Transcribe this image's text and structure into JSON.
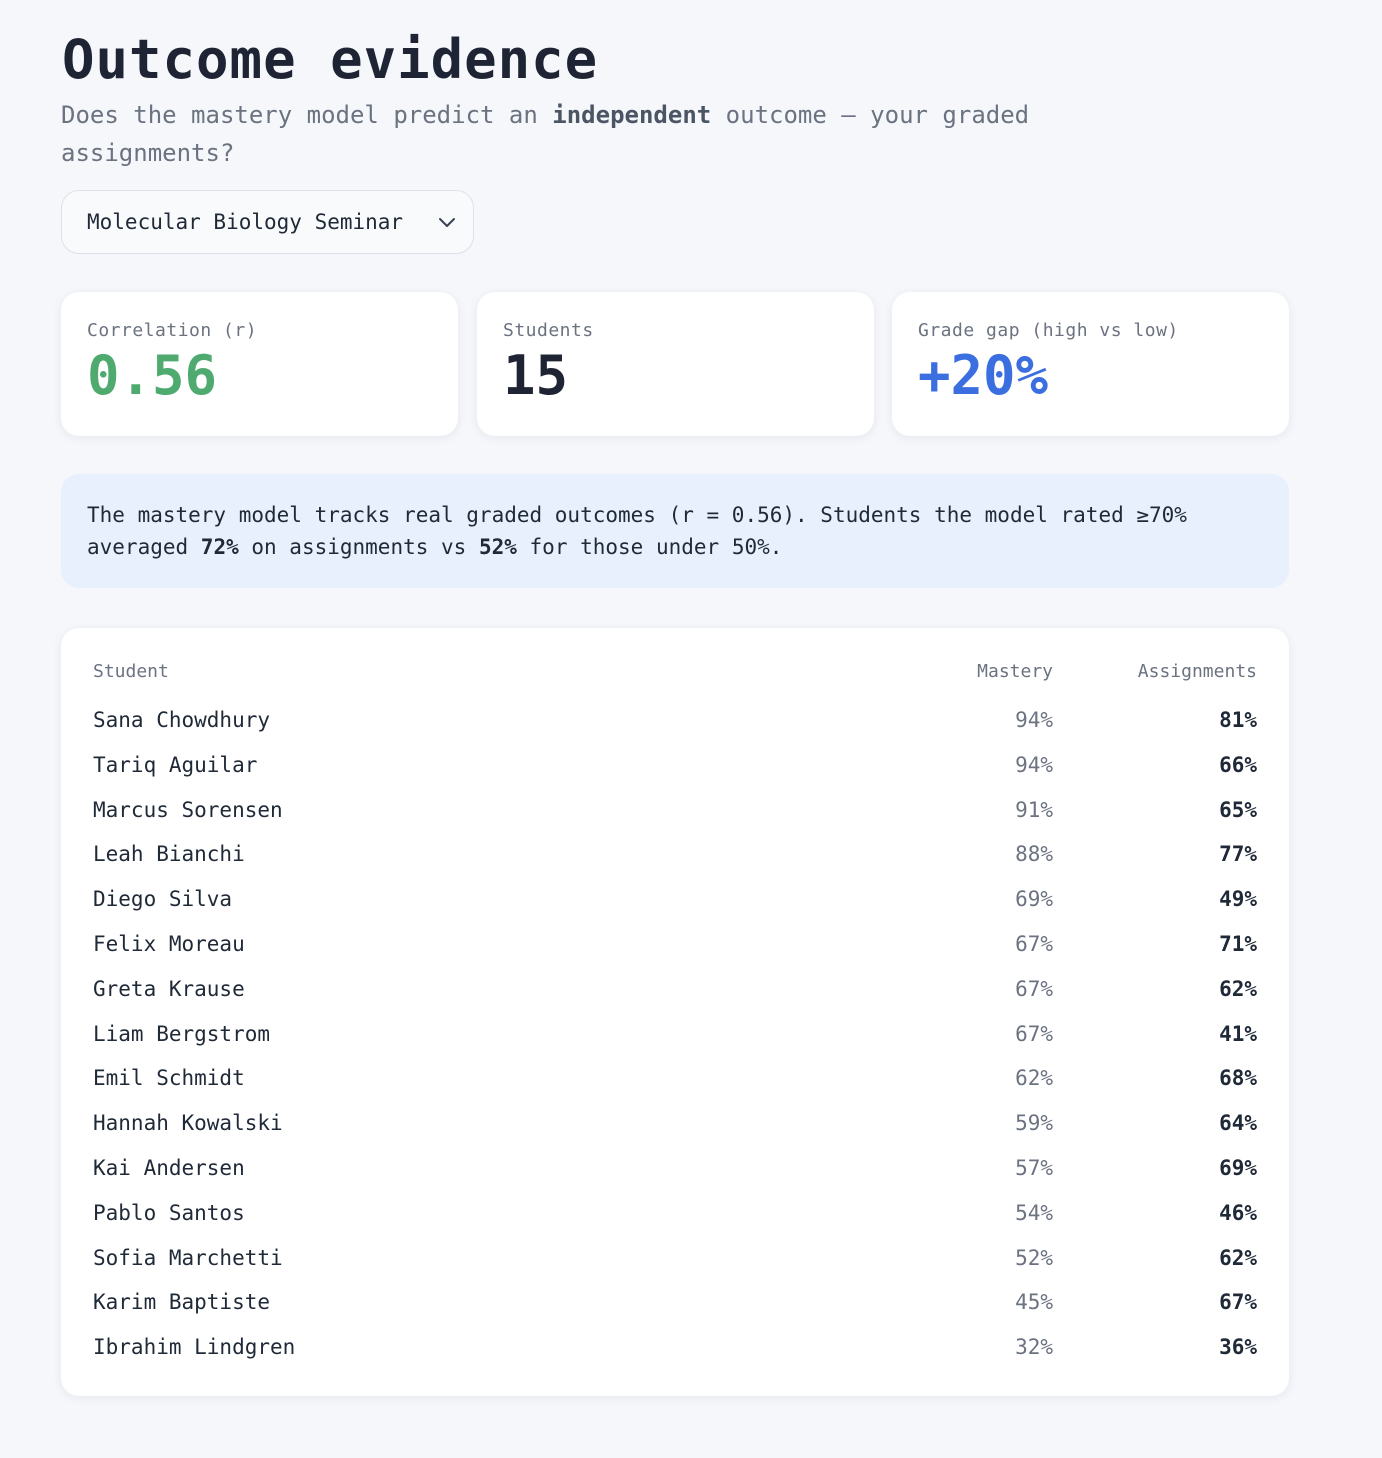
{
  "header": {
    "title": "Outcome evidence",
    "subtitle_pre": "Does the mastery model predict an ",
    "subtitle_bold": "independent",
    "subtitle_post": " outcome — your graded assignments?"
  },
  "course_select": {
    "selected": "Molecular Biology Seminar",
    "icon": "chevron-down-icon"
  },
  "stats": {
    "correlation": {
      "label": "Correlation (r)",
      "value": "0.56",
      "color": "#4eaa6f"
    },
    "students": {
      "label": "Students",
      "value": "15",
      "color": "#1e2433"
    },
    "grade_gap": {
      "label": "Grade gap (high vs low)",
      "value": "+20%",
      "color": "#3b6fe0"
    }
  },
  "summary": {
    "part1": "The mastery model tracks real graded outcomes (r = 0.56). Students the model rated ≥70% averaged ",
    "high_avg": "72%",
    "part2": " on assignments vs ",
    "low_avg": "52%",
    "part3": " for those under 50%."
  },
  "table": {
    "columns": {
      "student": "Student",
      "mastery": "Mastery",
      "assignments": "Assignments"
    },
    "rows": [
      {
        "student": "Sana Chowdhury",
        "mastery": "94%",
        "assignments": "81%"
      },
      {
        "student": "Tariq Aguilar",
        "mastery": "94%",
        "assignments": "66%"
      },
      {
        "student": "Marcus Sorensen",
        "mastery": "91%",
        "assignments": "65%"
      },
      {
        "student": "Leah Bianchi",
        "mastery": "88%",
        "assignments": "77%"
      },
      {
        "student": "Diego Silva",
        "mastery": "69%",
        "assignments": "49%"
      },
      {
        "student": "Felix Moreau",
        "mastery": "67%",
        "assignments": "71%"
      },
      {
        "student": "Greta Krause",
        "mastery": "67%",
        "assignments": "62%"
      },
      {
        "student": "Liam Bergstrom",
        "mastery": "67%",
        "assignments": "41%"
      },
      {
        "student": "Emil Schmidt",
        "mastery": "62%",
        "assignments": "68%"
      },
      {
        "student": "Hannah Kowalski",
        "mastery": "59%",
        "assignments": "64%"
      },
      {
        "student": "Kai Andersen",
        "mastery": "57%",
        "assignments": "69%"
      },
      {
        "student": "Pablo Santos",
        "mastery": "54%",
        "assignments": "46%"
      },
      {
        "student": "Sofia Marchetti",
        "mastery": "52%",
        "assignments": "62%"
      },
      {
        "student": "Karim Baptiste",
        "mastery": "45%",
        "assignments": "67%"
      },
      {
        "student": "Ibrahim Lindgren",
        "mastery": "32%",
        "assignments": "36%"
      }
    ]
  }
}
